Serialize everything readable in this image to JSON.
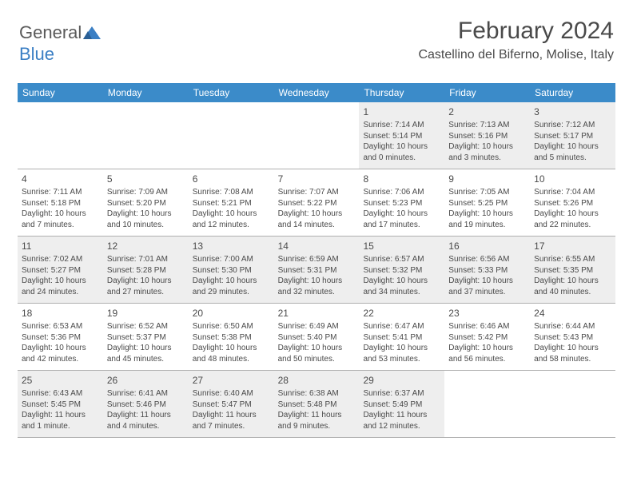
{
  "logo": {
    "text1": "General",
    "text2": "Blue"
  },
  "header": {
    "month": "February 2024",
    "location": "Castellino del Biferno, Molise, Italy"
  },
  "colors": {
    "header_bg": "#3b8bc9",
    "header_text": "#ffffff",
    "gray_bg": "#eeeeee",
    "text": "#4a4a4a",
    "border": "#b0b0b0",
    "logo_blue": "#3b7fc4"
  },
  "weekdays": [
    "Sunday",
    "Monday",
    "Tuesday",
    "Wednesday",
    "Thursday",
    "Friday",
    "Saturday"
  ],
  "weeks": [
    [
      {
        "n": "",
        "sr": "",
        "ss": "",
        "dl": ""
      },
      {
        "n": "",
        "sr": "",
        "ss": "",
        "dl": ""
      },
      {
        "n": "",
        "sr": "",
        "ss": "",
        "dl": ""
      },
      {
        "n": "",
        "sr": "",
        "ss": "",
        "dl": ""
      },
      {
        "n": "1",
        "sr": "Sunrise: 7:14 AM",
        "ss": "Sunset: 5:14 PM",
        "dl": "Daylight: 10 hours and 0 minutes."
      },
      {
        "n": "2",
        "sr": "Sunrise: 7:13 AM",
        "ss": "Sunset: 5:16 PM",
        "dl": "Daylight: 10 hours and 3 minutes."
      },
      {
        "n": "3",
        "sr": "Sunrise: 7:12 AM",
        "ss": "Sunset: 5:17 PM",
        "dl": "Daylight: 10 hours and 5 minutes."
      }
    ],
    [
      {
        "n": "4",
        "sr": "Sunrise: 7:11 AM",
        "ss": "Sunset: 5:18 PM",
        "dl": "Daylight: 10 hours and 7 minutes."
      },
      {
        "n": "5",
        "sr": "Sunrise: 7:09 AM",
        "ss": "Sunset: 5:20 PM",
        "dl": "Daylight: 10 hours and 10 minutes."
      },
      {
        "n": "6",
        "sr": "Sunrise: 7:08 AM",
        "ss": "Sunset: 5:21 PM",
        "dl": "Daylight: 10 hours and 12 minutes."
      },
      {
        "n": "7",
        "sr": "Sunrise: 7:07 AM",
        "ss": "Sunset: 5:22 PM",
        "dl": "Daylight: 10 hours and 14 minutes."
      },
      {
        "n": "8",
        "sr": "Sunrise: 7:06 AM",
        "ss": "Sunset: 5:23 PM",
        "dl": "Daylight: 10 hours and 17 minutes."
      },
      {
        "n": "9",
        "sr": "Sunrise: 7:05 AM",
        "ss": "Sunset: 5:25 PM",
        "dl": "Daylight: 10 hours and 19 minutes."
      },
      {
        "n": "10",
        "sr": "Sunrise: 7:04 AM",
        "ss": "Sunset: 5:26 PM",
        "dl": "Daylight: 10 hours and 22 minutes."
      }
    ],
    [
      {
        "n": "11",
        "sr": "Sunrise: 7:02 AM",
        "ss": "Sunset: 5:27 PM",
        "dl": "Daylight: 10 hours and 24 minutes."
      },
      {
        "n": "12",
        "sr": "Sunrise: 7:01 AM",
        "ss": "Sunset: 5:28 PM",
        "dl": "Daylight: 10 hours and 27 minutes."
      },
      {
        "n": "13",
        "sr": "Sunrise: 7:00 AM",
        "ss": "Sunset: 5:30 PM",
        "dl": "Daylight: 10 hours and 29 minutes."
      },
      {
        "n": "14",
        "sr": "Sunrise: 6:59 AM",
        "ss": "Sunset: 5:31 PM",
        "dl": "Daylight: 10 hours and 32 minutes."
      },
      {
        "n": "15",
        "sr": "Sunrise: 6:57 AM",
        "ss": "Sunset: 5:32 PM",
        "dl": "Daylight: 10 hours and 34 minutes."
      },
      {
        "n": "16",
        "sr": "Sunrise: 6:56 AM",
        "ss": "Sunset: 5:33 PM",
        "dl": "Daylight: 10 hours and 37 minutes."
      },
      {
        "n": "17",
        "sr": "Sunrise: 6:55 AM",
        "ss": "Sunset: 5:35 PM",
        "dl": "Daylight: 10 hours and 40 minutes."
      }
    ],
    [
      {
        "n": "18",
        "sr": "Sunrise: 6:53 AM",
        "ss": "Sunset: 5:36 PM",
        "dl": "Daylight: 10 hours and 42 minutes."
      },
      {
        "n": "19",
        "sr": "Sunrise: 6:52 AM",
        "ss": "Sunset: 5:37 PM",
        "dl": "Daylight: 10 hours and 45 minutes."
      },
      {
        "n": "20",
        "sr": "Sunrise: 6:50 AM",
        "ss": "Sunset: 5:38 PM",
        "dl": "Daylight: 10 hours and 48 minutes."
      },
      {
        "n": "21",
        "sr": "Sunrise: 6:49 AM",
        "ss": "Sunset: 5:40 PM",
        "dl": "Daylight: 10 hours and 50 minutes."
      },
      {
        "n": "22",
        "sr": "Sunrise: 6:47 AM",
        "ss": "Sunset: 5:41 PM",
        "dl": "Daylight: 10 hours and 53 minutes."
      },
      {
        "n": "23",
        "sr": "Sunrise: 6:46 AM",
        "ss": "Sunset: 5:42 PM",
        "dl": "Daylight: 10 hours and 56 minutes."
      },
      {
        "n": "24",
        "sr": "Sunrise: 6:44 AM",
        "ss": "Sunset: 5:43 PM",
        "dl": "Daylight: 10 hours and 58 minutes."
      }
    ],
    [
      {
        "n": "25",
        "sr": "Sunrise: 6:43 AM",
        "ss": "Sunset: 5:45 PM",
        "dl": "Daylight: 11 hours and 1 minute."
      },
      {
        "n": "26",
        "sr": "Sunrise: 6:41 AM",
        "ss": "Sunset: 5:46 PM",
        "dl": "Daylight: 11 hours and 4 minutes."
      },
      {
        "n": "27",
        "sr": "Sunrise: 6:40 AM",
        "ss": "Sunset: 5:47 PM",
        "dl": "Daylight: 11 hours and 7 minutes."
      },
      {
        "n": "28",
        "sr": "Sunrise: 6:38 AM",
        "ss": "Sunset: 5:48 PM",
        "dl": "Daylight: 11 hours and 9 minutes."
      },
      {
        "n": "29",
        "sr": "Sunrise: 6:37 AM",
        "ss": "Sunset: 5:49 PM",
        "dl": "Daylight: 11 hours and 12 minutes."
      },
      {
        "n": "",
        "sr": "",
        "ss": "",
        "dl": ""
      },
      {
        "n": "",
        "sr": "",
        "ss": "",
        "dl": ""
      }
    ]
  ]
}
